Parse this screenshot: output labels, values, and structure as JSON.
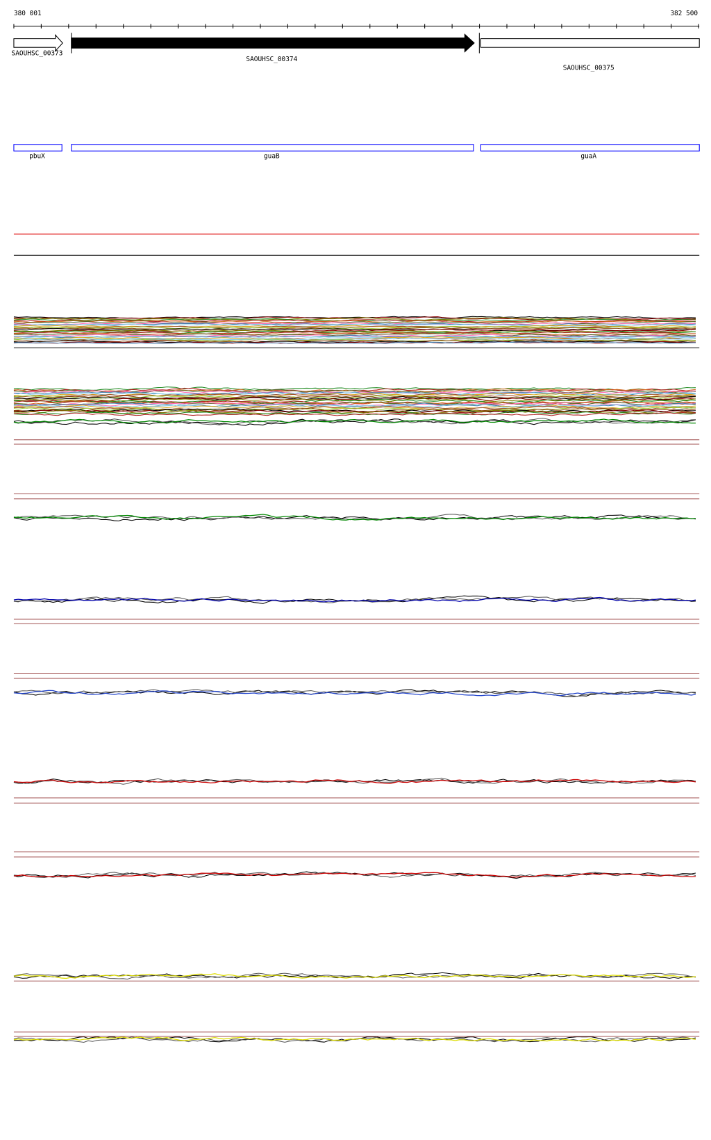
{
  "ruler": {
    "start": "380 001",
    "end": "382 500"
  },
  "genes": [
    {
      "label": "SAOUHSC_00373"
    },
    {
      "label": "SAOUHSC_00374"
    },
    {
      "label": "SAOUHSC_00375"
    }
  ],
  "features": [
    {
      "label": "pbuX"
    },
    {
      "label": "guaB"
    },
    {
      "label": "guaA"
    }
  ]
}
